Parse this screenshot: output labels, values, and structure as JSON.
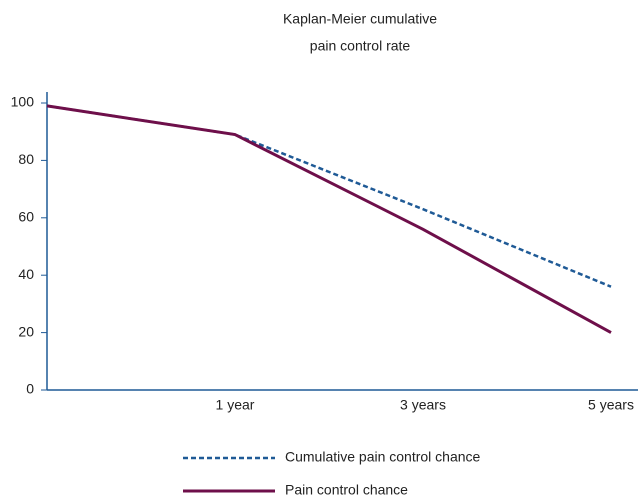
{
  "chart_data": {
    "type": "line",
    "title": [
      "Kaplan-Meier cumulative",
      "pain control rate"
    ],
    "categories": [
      null,
      "1 year",
      "3 years",
      "5 years"
    ],
    "series": [
      {
        "name": "Cumulative pain control chance",
        "color": "#1f5a96",
        "dashed": true,
        "values": [
          99,
          89,
          63,
          36
        ]
      },
      {
        "name": "Pain control chance",
        "color": "#6e0f4a",
        "dashed": false,
        "values": [
          99,
          89,
          56,
          20
        ]
      }
    ],
    "ylim": [
      0,
      100
    ],
    "yticks": [
      0,
      20,
      40,
      60,
      80,
      100
    ],
    "grid": false
  }
}
